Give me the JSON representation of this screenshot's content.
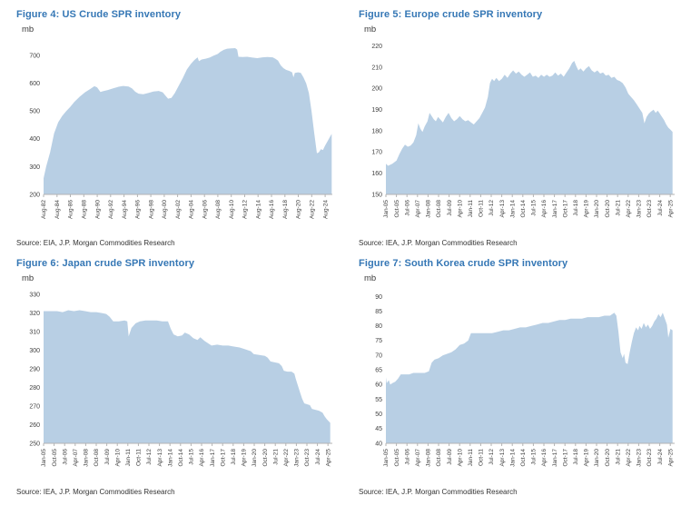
{
  "colors": {
    "title": "#3577b5",
    "area_fill": "#b8cfe4",
    "axis_line": "#b3b3b3",
    "tick_text": "#404040",
    "source_text": "#333333",
    "background": "#ffffff"
  },
  "chart_data": [
    {
      "type": "area",
      "title": "Figure 4: US Crude SPR inventory",
      "ylabel": "mb",
      "source": "Source: EIA, J.P. Morgan Commodities Research",
      "xlim": [
        1982.625,
        2025.7
      ],
      "ylim": [
        200,
        750
      ],
      "yticks": [
        200,
        300,
        400,
        500,
        600,
        700
      ],
      "xtick_labels": [
        "Aug-82",
        "Aug-84",
        "Aug-86",
        "Aug-88",
        "Aug-90",
        "Aug-92",
        "Aug-94",
        "Aug-96",
        "Aug-98",
        "Aug-00",
        "Aug-02",
        "Aug-04",
        "Aug-06",
        "Aug-08",
        "Aug-10",
        "Aug-12",
        "Aug-14",
        "Aug-16",
        "Aug-18",
        "Aug-20",
        "Aug-22",
        "Aug-24"
      ],
      "series": [
        {
          "name": "US crude SPR inventory",
          "x": [
            1982.625,
            1983.0,
            1983.6,
            1984.2,
            1984.8,
            1985.4,
            1986.0,
            1986.6,
            1987.2,
            1988.0,
            1988.8,
            1989.6,
            1990.2,
            1990.6,
            1991.1,
            1991.5,
            1992.2,
            1993.0,
            1993.8,
            1994.5,
            1995.3,
            1995.8,
            1996.3,
            1996.8,
            1997.5,
            1998.3,
            1999.0,
            1999.8,
            2000.4,
            2000.8,
            2001.2,
            2001.7,
            2002.2,
            2002.8,
            2003.4,
            2004.0,
            2004.6,
            2005.1,
            2005.6,
            2005.8,
            2006.2,
            2006.8,
            2007.4,
            2008.0,
            2008.6,
            2009.0,
            2009.5,
            2010.0,
            2010.6,
            2011.2,
            2011.5,
            2011.7,
            2012.3,
            2013.0,
            2013.8,
            2014.5,
            2015.3,
            2016.0,
            2016.8,
            2017.2,
            2017.6,
            2018.0,
            2018.4,
            2018.8,
            2019.3,
            2019.7,
            2019.9,
            2020.1,
            2020.6,
            2021.0,
            2021.4,
            2021.8,
            2022.2,
            2022.6,
            2023.0,
            2023.4,
            2023.7,
            2024.0,
            2024.3,
            2024.6,
            2025.0,
            2025.3,
            2025.6
          ],
          "y": [
            258,
            300,
            352,
            420,
            460,
            483,
            500,
            515,
            533,
            552,
            568,
            580,
            590,
            586,
            569,
            572,
            576,
            582,
            588,
            591,
            589,
            582,
            570,
            563,
            561,
            566,
            571,
            573,
            568,
            556,
            545,
            548,
            565,
            592,
            620,
            650,
            670,
            684,
            694,
            680,
            686,
            689,
            693,
            700,
            706,
            714,
            721,
            725,
            726,
            727,
            722,
            696,
            695,
            696,
            693,
            691,
            694,
            695,
            694,
            689,
            682,
            665,
            655,
            649,
            645,
            640,
            622,
            638,
            640,
            638,
            621,
            600,
            565,
            500,
            420,
            348,
            352,
            363,
            360,
            375,
            392,
            405,
            418
          ]
        }
      ]
    },
    {
      "type": "area",
      "title": "Figure 5: Europe crude SPR inventory",
      "ylabel": "mb",
      "source": "Source: IEA, J.P. Morgan Commodities Research",
      "xlim": [
        2005.042,
        2025.6
      ],
      "ylim": [
        150,
        222
      ],
      "yticks": [
        150,
        160,
        170,
        180,
        190,
        200,
        210,
        220
      ],
      "xtick_labels": [
        "Jan-05",
        "Oct-05",
        "Jul-06",
        "Apr-07",
        "Jan-08",
        "Oct-08",
        "Jul-09",
        "Apr-10",
        "Jan-11",
        "Oct-11",
        "Jul-12",
        "Apr-13",
        "Jan-14",
        "Oct-14",
        "Jul-15",
        "Apr-16",
        "Jan-17",
        "Oct-17",
        "Jul-18",
        "Apr-19",
        "Jan-20",
        "Oct-20",
        "Jul-21",
        "Apr-22",
        "Jan-23",
        "Oct-23",
        "Jul-24",
        "Apr-25"
      ],
      "series": [
        {
          "name": "Europe crude SPR inventory",
          "x": [
            2005.04,
            2005.2,
            2005.5,
            2005.8,
            2006.0,
            2006.2,
            2006.4,
            2006.6,
            2006.8,
            2007.0,
            2007.2,
            2007.35,
            2007.5,
            2007.65,
            2007.8,
            2008.0,
            2008.15,
            2008.3,
            2008.45,
            2008.6,
            2008.75,
            2008.9,
            2009.1,
            2009.3,
            2009.5,
            2009.7,
            2009.9,
            2010.1,
            2010.3,
            2010.5,
            2010.7,
            2010.9,
            2011.1,
            2011.3,
            2011.5,
            2011.7,
            2011.9,
            2012.1,
            2012.3,
            2012.45,
            2012.6,
            2012.75,
            2012.9,
            2013.1,
            2013.3,
            2013.5,
            2013.7,
            2013.9,
            2014.1,
            2014.3,
            2014.5,
            2014.7,
            2014.9,
            2015.1,
            2015.3,
            2015.5,
            2015.7,
            2015.9,
            2016.1,
            2016.3,
            2016.5,
            2016.7,
            2016.9,
            2017.1,
            2017.3,
            2017.5,
            2017.7,
            2017.9,
            2018.1,
            2018.3,
            2018.45,
            2018.6,
            2018.75,
            2018.9,
            2019.1,
            2019.3,
            2019.5,
            2019.7,
            2019.9,
            2020.1,
            2020.3,
            2020.5,
            2020.7,
            2020.9,
            2021.1,
            2021.3,
            2021.5,
            2021.7,
            2021.9,
            2022.1,
            2022.3,
            2022.5,
            2022.7,
            2022.9,
            2023.1,
            2023.3,
            2023.45,
            2023.6,
            2023.75,
            2023.9,
            2024.1,
            2024.25,
            2024.4,
            2024.55,
            2024.7,
            2024.85,
            2025.0,
            2025.15,
            2025.3,
            2025.45
          ],
          "y": [
            164.5,
            163.5,
            164.5,
            166,
            169,
            171.5,
            173.5,
            172.5,
            173,
            174.5,
            178,
            183.5,
            181,
            179.5,
            182,
            184.5,
            188.5,
            187,
            185.5,
            184.5,
            186.5,
            185.5,
            184,
            186.5,
            188.5,
            186,
            184.5,
            185.5,
            187,
            185.5,
            184.5,
            185,
            184,
            183,
            184.5,
            186,
            188.5,
            191,
            196,
            202.5,
            204.5,
            203.5,
            205,
            203.5,
            204.5,
            206.5,
            205,
            207,
            208.5,
            207,
            208,
            206.5,
            205.5,
            206.5,
            207.5,
            205.5,
            206,
            205,
            206.5,
            205.5,
            206.5,
            205.5,
            206,
            207.5,
            206,
            207,
            205.5,
            207.5,
            209.5,
            212,
            213,
            210.5,
            208.5,
            209.5,
            208,
            209.5,
            210.5,
            208.5,
            207.5,
            208.5,
            207,
            207.5,
            206,
            206.5,
            205,
            205.5,
            204,
            203.5,
            202.5,
            200.5,
            197.5,
            196,
            194.5,
            192.5,
            190.5,
            188.5,
            183.5,
            186.5,
            188,
            189,
            190,
            188.5,
            189.5,
            188,
            186.5,
            185,
            183,
            181.5,
            180.5,
            179.5
          ]
        }
      ]
    },
    {
      "type": "area",
      "title": "Figure 6: Japan crude SPR inventory",
      "ylabel": "mb",
      "source": "Source: IEA, J.P. Morgan Commodities Research",
      "xlim": [
        2005.042,
        2025.6
      ],
      "ylim": [
        250,
        332
      ],
      "yticks": [
        250,
        260,
        270,
        280,
        290,
        300,
        310,
        320,
        330
      ],
      "xtick_labels": [
        "Jan-05",
        "Oct-05",
        "Jul-06",
        "Apr-07",
        "Jan-08",
        "Oct-08",
        "Jul-09",
        "Apr-10",
        "Jan-11",
        "Oct-11",
        "Jul-12",
        "Apr-13",
        "Jan-14",
        "Oct-14",
        "Jul-15",
        "Apr-16",
        "Jan-17",
        "Oct-17",
        "Jul-18",
        "Apr-19",
        "Jan-20",
        "Oct-20",
        "Jul-21",
        "Apr-22",
        "Jan-23",
        "Oct-23",
        "Jul-24",
        "Apr-25"
      ],
      "series": [
        {
          "name": "Japan crude SPR inventory",
          "x": [
            2005.04,
            2005.5,
            2006.0,
            2006.4,
            2006.8,
            2007.2,
            2007.6,
            2008.0,
            2008.4,
            2008.8,
            2009.2,
            2009.5,
            2009.75,
            2010.0,
            2010.4,
            2010.8,
            2011.0,
            2011.1,
            2011.3,
            2011.6,
            2011.9,
            2012.3,
            2012.7,
            2013.1,
            2013.5,
            2013.9,
            2014.1,
            2014.3,
            2014.6,
            2014.9,
            2015.1,
            2015.4,
            2015.7,
            2016.0,
            2016.2,
            2016.5,
            2016.8,
            2017.0,
            2017.4,
            2017.8,
            2018.2,
            2018.6,
            2019.0,
            2019.4,
            2019.8,
            2020.0,
            2020.4,
            2020.8,
            2021.0,
            2021.2,
            2021.5,
            2021.8,
            2022.0,
            2022.15,
            2022.4,
            2022.7,
            2022.9,
            2023.0,
            2023.15,
            2023.3,
            2023.45,
            2023.6,
            2023.8,
            2024.0,
            2024.15,
            2024.4,
            2024.65,
            2024.9,
            2025.05,
            2025.2,
            2025.45
          ],
          "y": [
            321,
            321,
            321,
            320.5,
            321.5,
            321,
            321.5,
            321,
            320.5,
            320.5,
            320,
            319.5,
            318,
            315.5,
            315.5,
            316,
            315.5,
            307.5,
            312,
            314.5,
            315.5,
            316,
            316,
            316,
            315.5,
            315.5,
            311.5,
            308.5,
            307.5,
            308,
            309.5,
            308.5,
            306.5,
            305.5,
            307,
            305,
            303.5,
            302.5,
            303,
            302.5,
            302.5,
            302,
            301.5,
            300.5,
            299.5,
            298,
            297.5,
            297,
            296,
            294,
            293.5,
            293,
            291.5,
            289,
            288.5,
            288.5,
            287.5,
            284.5,
            281,
            277.5,
            274,
            271.5,
            271,
            270.5,
            268.5,
            268,
            267.5,
            266.5,
            264.5,
            263,
            261
          ]
        }
      ]
    },
    {
      "type": "area",
      "title": "Figure 7: South Korea crude SPR inventory",
      "ylabel": "mb",
      "source": "Source: IEA, J.P. Morgan Commodities Research",
      "xlim": [
        2005.042,
        2025.6
      ],
      "ylim": [
        40,
        92
      ],
      "yticks": [
        40,
        45,
        50,
        55,
        60,
        65,
        70,
        75,
        80,
        85,
        90
      ],
      "xtick_labels": [
        "Jan-05",
        "Oct-05",
        "Jul-06",
        "Apr-07",
        "Jan-08",
        "Oct-08",
        "Jul-09",
        "Apr-10",
        "Jan-11",
        "Oct-11",
        "Jul-12",
        "Apr-13",
        "Jan-14",
        "Oct-14",
        "Jul-15",
        "Apr-16",
        "Jan-17",
        "Oct-17",
        "Jul-18",
        "Apr-19",
        "Jan-20",
        "Oct-20",
        "Jul-21",
        "Apr-22",
        "Jan-23",
        "Oct-23",
        "Jul-24",
        "Apr-25"
      ],
      "series": [
        {
          "name": "South Korea crude SPR inventory",
          "x": [
            2005.04,
            2005.1,
            2005.25,
            2005.35,
            2005.5,
            2005.7,
            2005.9,
            2006.1,
            2006.4,
            2006.7,
            2007.0,
            2007.4,
            2007.8,
            2008.1,
            2008.3,
            2008.5,
            2008.8,
            2009.1,
            2009.4,
            2009.7,
            2010.0,
            2010.3,
            2010.6,
            2010.9,
            2011.1,
            2011.4,
            2011.8,
            2012.2,
            2012.6,
            2013.0,
            2013.4,
            2013.8,
            2014.2,
            2014.6,
            2015.0,
            2015.4,
            2015.8,
            2016.2,
            2016.6,
            2017.0,
            2017.4,
            2017.8,
            2018.2,
            2018.6,
            2019.0,
            2019.4,
            2019.8,
            2020.2,
            2020.6,
            2021.0,
            2021.3,
            2021.45,
            2021.6,
            2021.75,
            2021.9,
            2022.0,
            2022.1,
            2022.25,
            2022.4,
            2022.55,
            2022.7,
            2022.85,
            2023.0,
            2023.1,
            2023.25,
            2023.4,
            2023.55,
            2023.7,
            2023.85,
            2024.0,
            2024.15,
            2024.3,
            2024.45,
            2024.6,
            2024.75,
            2024.9,
            2025.05,
            2025.15,
            2025.3,
            2025.45
          ],
          "y": [
            62.5,
            60.5,
            61.5,
            60,
            60.5,
            61,
            62,
            63.5,
            63.5,
            63.5,
            64,
            64,
            64,
            64.5,
            67.5,
            68.5,
            69,
            70,
            70.5,
            71,
            72,
            73.5,
            74,
            75,
            77.5,
            77.5,
            77.5,
            77.5,
            77.5,
            78,
            78.5,
            78.5,
            79,
            79.5,
            79.5,
            80,
            80.5,
            81,
            81,
            81.5,
            82,
            82,
            82.5,
            82.5,
            82.5,
            83,
            83,
            83,
            83.5,
            83.5,
            84.5,
            83.5,
            78,
            71,
            69,
            70.5,
            67.5,
            67,
            71,
            74.5,
            77.5,
            79.5,
            78.5,
            80,
            79,
            81,
            79.5,
            80.5,
            79,
            80,
            81.5,
            82.5,
            84,
            83,
            84.5,
            82.5,
            80.5,
            76,
            79,
            78.5
          ]
        }
      ]
    }
  ]
}
